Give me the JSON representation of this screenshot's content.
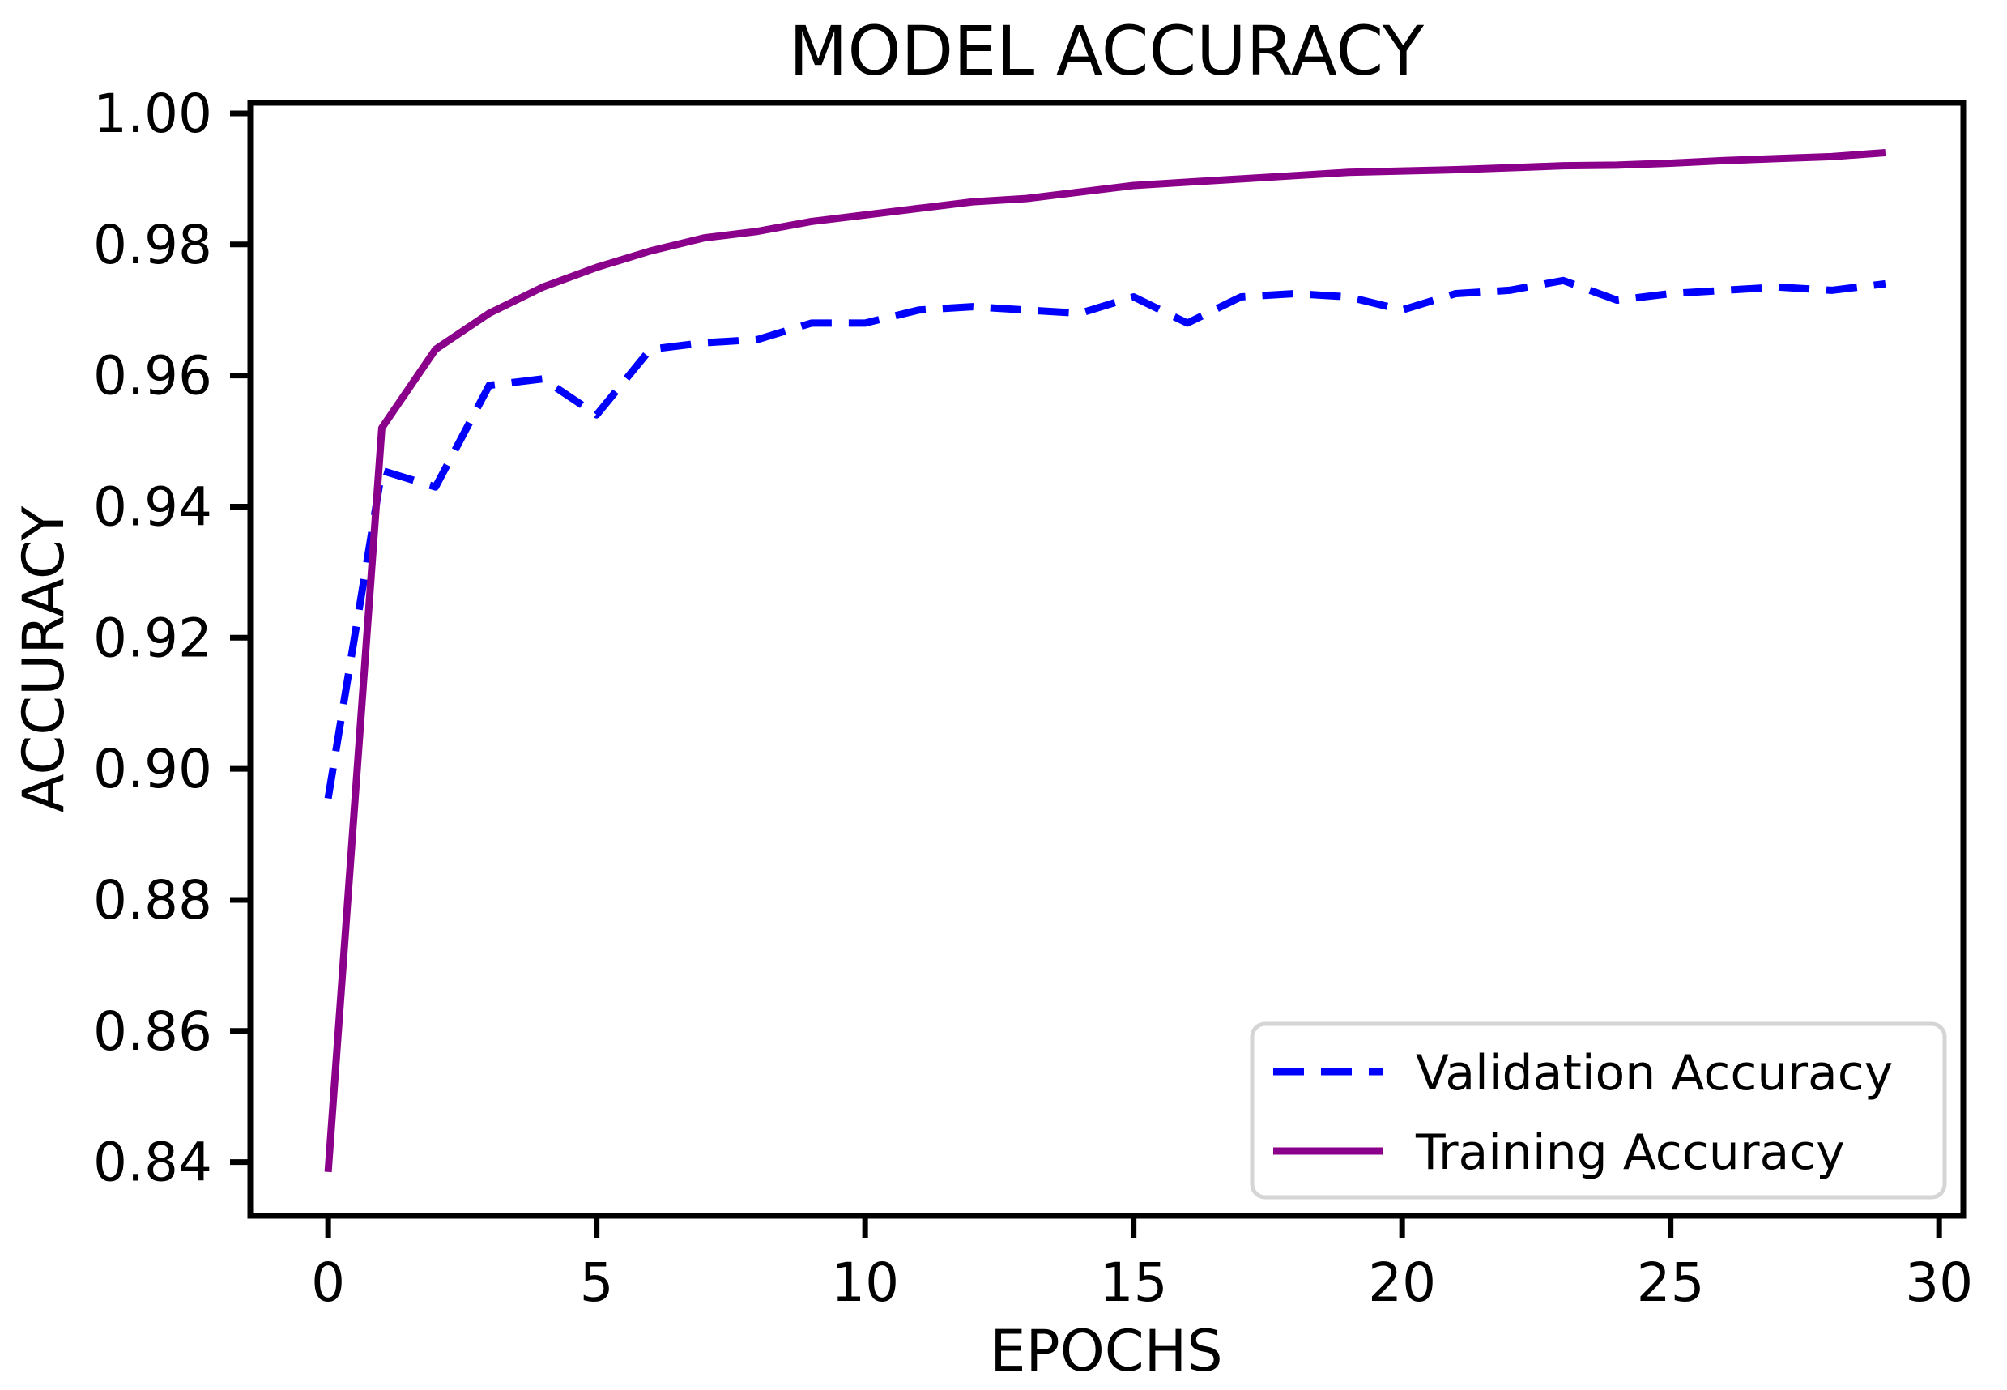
{
  "figure": {
    "background": "#ffffff",
    "text_color": "#000000"
  },
  "chart_data": {
    "type": "line",
    "title": "MODEL ACCURACY",
    "xlabel": "EPOCHS",
    "ylabel": "ACCURACY",
    "x": [
      0,
      1,
      2,
      3,
      4,
      5,
      6,
      7,
      8,
      9,
      10,
      11,
      12,
      13,
      14,
      15,
      16,
      17,
      18,
      19,
      20,
      21,
      22,
      23,
      24,
      25,
      26,
      27,
      28,
      29
    ],
    "series": [
      {
        "name": "Validation Accuracy",
        "color": "#0000ff",
        "style": "dashed",
        "values": [
          0.8955,
          0.9455,
          0.943,
          0.9585,
          0.9595,
          0.954,
          0.964,
          0.965,
          0.9655,
          0.968,
          0.968,
          0.97,
          0.9705,
          0.97,
          0.9695,
          0.972,
          0.968,
          0.972,
          0.9725,
          0.972,
          0.97,
          0.9725,
          0.973,
          0.9745,
          0.9715,
          0.9725,
          0.973,
          0.9735,
          0.973,
          0.974
        ]
      },
      {
        "name": "Training Accuracy",
        "color": "#8a008a",
        "style": "solid",
        "values": [
          0.8385,
          0.952,
          0.964,
          0.9695,
          0.9735,
          0.9765,
          0.979,
          0.981,
          0.982,
          0.9835,
          0.9845,
          0.9855,
          0.9865,
          0.987,
          0.988,
          0.989,
          0.9895,
          0.99,
          0.9905,
          0.991,
          0.9912,
          0.9914,
          0.9917,
          0.992,
          0.9921,
          0.9924,
          0.9928,
          0.9931,
          0.9934,
          0.994
        ]
      }
    ],
    "xlim": [
      -1.45,
      30.45
    ],
    "ylim": [
      0.8318,
      1.0016
    ],
    "x_ticks": [
      0,
      5,
      10,
      15,
      20,
      25,
      30
    ],
    "y_ticks": [
      0.84,
      0.86,
      0.88,
      0.9,
      0.92,
      0.94,
      0.96,
      0.98,
      1.0
    ],
    "y_tick_decimals": 2,
    "grid": false,
    "legend_position": "lower right"
  },
  "legend": {
    "items": [
      {
        "label": "Validation Accuracy"
      },
      {
        "label": "Training Accuracy"
      }
    ]
  }
}
